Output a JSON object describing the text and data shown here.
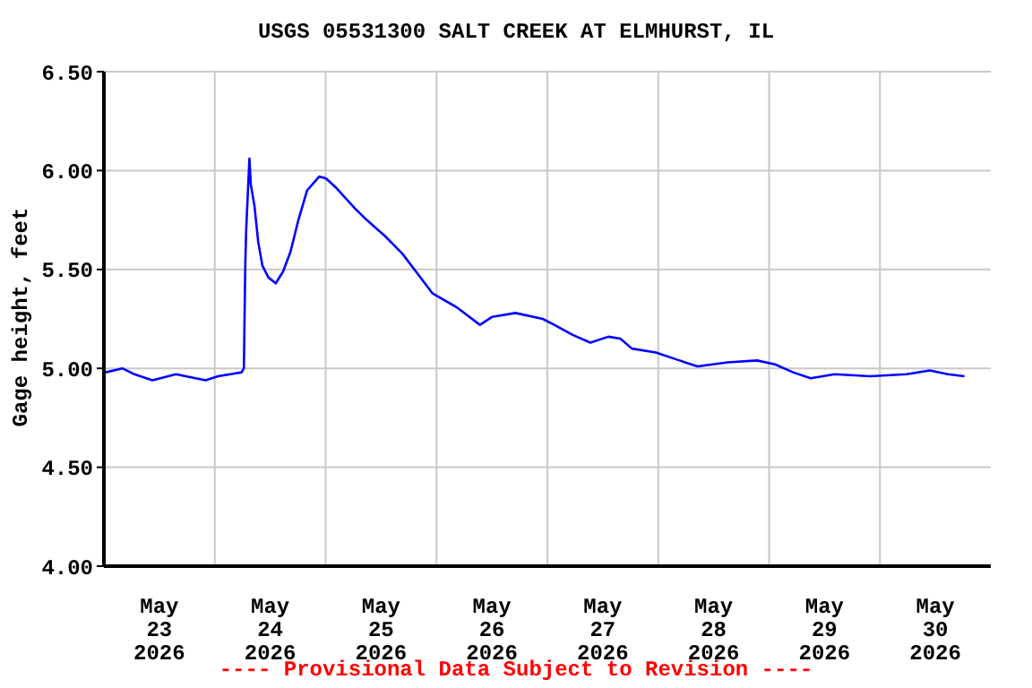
{
  "chart_data": {
    "type": "line",
    "title": "USGS 05531300 SALT CREEK AT ELMHURST, IL",
    "ylabel": "Gage height, feet",
    "annotations": [
      "---- Provisional Data Subject to Revision ----"
    ],
    "x": [
      "2026-05-23T00:24",
      "2026-05-23T04:00",
      "2026-05-23T06:36",
      "2026-05-23T10:30",
      "2026-05-23T15:36",
      "2026-05-23T22:00",
      "2026-05-24T00:42",
      "2026-05-24T05:48",
      "2026-05-24T06:18",
      "2026-05-24T06:36",
      "2026-05-24T06:48",
      "2026-05-24T07:30",
      "2026-05-24T07:48",
      "2026-05-24T08:36",
      "2026-05-24T09:24",
      "2026-05-24T10:18",
      "2026-05-24T11:36",
      "2026-05-24T13:12",
      "2026-05-24T14:48",
      "2026-05-24T16:24",
      "2026-05-24T18:06",
      "2026-05-24T20:00",
      "2026-05-24T22:36",
      "2026-05-25T00:06",
      "2026-05-25T02:24",
      "2026-05-25T06:18",
      "2026-05-25T08:54",
      "2026-05-25T12:48",
      "2026-05-25T16:36",
      "2026-05-25T19:12",
      "2026-05-25T23:06",
      "2026-05-26T04:18",
      "2026-05-26T09:24",
      "2026-05-26T12:00",
      "2026-05-26T17:06",
      "2026-05-26T23:00",
      "2026-05-27T01:30",
      "2026-05-27T05:24",
      "2026-05-27T09:18",
      "2026-05-27T13:12",
      "2026-05-27T15:48",
      "2026-05-27T18:18",
      "2026-05-27T23:30",
      "2026-05-28T04:36",
      "2026-05-28T08:30",
      "2026-05-28T15:00",
      "2026-05-28T21:24",
      "2026-05-29T01:18",
      "2026-05-29T05:12",
      "2026-05-29T09:00",
      "2026-05-29T14:12",
      "2026-05-29T21:54",
      "2026-05-30T05:42",
      "2026-05-30T10:48",
      "2026-05-30T14:42",
      "2026-05-30T18:18"
    ],
    "series": [
      {
        "color": "#0000ff",
        "values": [
          4.98,
          5.0,
          4.97,
          4.94,
          4.97,
          4.94,
          4.96,
          4.98,
          5.0,
          5.52,
          5.7,
          6.06,
          5.93,
          5.82,
          5.64,
          5.52,
          5.46,
          5.43,
          5.49,
          5.59,
          5.75,
          5.9,
          5.97,
          5.96,
          5.91,
          5.81,
          5.75,
          5.67,
          5.58,
          5.5,
          5.38,
          5.31,
          5.22,
          5.26,
          5.28,
          5.25,
          5.22,
          5.17,
          5.13,
          5.16,
          5.15,
          5.1,
          5.08,
          5.04,
          5.01,
          5.03,
          5.04,
          5.02,
          4.98,
          4.95,
          4.97,
          4.96,
          4.97,
          4.99,
          4.97,
          4.96
        ]
      }
    ],
    "xlim": [
      "2026-05-23T00:00",
      "2026-05-31T00:00"
    ],
    "xticks": [
      {
        "value": "2026-05-23T12:00",
        "label": "May\n23\n2026"
      },
      {
        "value": "2026-05-24T00:00",
        "label": null
      },
      {
        "value": "2026-05-24T12:00",
        "label": "May\n24\n2026"
      },
      {
        "value": "2026-05-25T00:00",
        "label": null
      },
      {
        "value": "2026-05-25T12:00",
        "label": "May\n25\n2026"
      },
      {
        "value": "2026-05-26T00:00",
        "label": null
      },
      {
        "value": "2026-05-26T12:00",
        "label": "May\n26\n2026"
      },
      {
        "value": "2026-05-27T00:00",
        "label": null
      },
      {
        "value": "2026-05-27T12:00",
        "label": "May\n27\n2026"
      },
      {
        "value": "2026-05-28T00:00",
        "label": null
      },
      {
        "value": "2026-05-28T12:00",
        "label": "May\n28\n2026"
      },
      {
        "value": "2026-05-29T00:00",
        "label": null
      },
      {
        "value": "2026-05-29T12:00",
        "label": "May\n29\n2026"
      },
      {
        "value": "2026-05-30T00:00",
        "label": null
      },
      {
        "value": "2026-05-30T12:00",
        "label": "May\n30\n2026"
      }
    ],
    "ylim": [
      4.0,
      6.5
    ],
    "yticks": [
      {
        "value": 4,
        "label": "4.00"
      },
      {
        "value": 4.5,
        "label": "4.50"
      },
      {
        "value": 5,
        "label": "5.00"
      },
      {
        "value": 5.5,
        "label": "5.50"
      },
      {
        "value": 6,
        "label": "6.00"
      },
      {
        "value": 6.5,
        "label": "6.50"
      }
    ],
    "grid": true,
    "marker": "none",
    "line_style": "solid",
    "legend": false
  }
}
